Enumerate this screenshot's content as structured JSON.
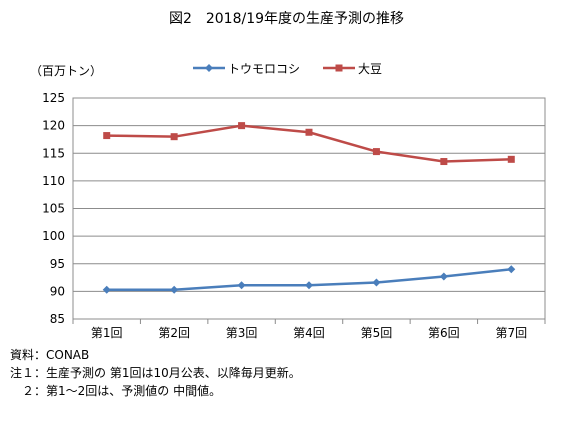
{
  "title": "図2　2018/19年度の生産予測の推移",
  "unit_label": "（百万トン）",
  "chart_data": {
    "type": "line",
    "categories": [
      "第1回",
      "第2回",
      "第3回",
      "第4回",
      "第5回",
      "第6回",
      "第7回"
    ],
    "series": [
      {
        "name": "トウモロコシ",
        "values": [
          90.3,
          90.3,
          91.1,
          91.1,
          91.6,
          92.7,
          94.0
        ],
        "color": "#4a7ebb",
        "marker": "diamond"
      },
      {
        "name": "大豆",
        "values": [
          118.2,
          118.0,
          120.0,
          118.8,
          115.3,
          113.5,
          113.9
        ],
        "color": "#be4b48",
        "marker": "square"
      }
    ],
    "ylim": [
      85,
      125
    ],
    "yticks": [
      85,
      90,
      95,
      100,
      105,
      110,
      115,
      120,
      125
    ],
    "grid": true,
    "legend": "top"
  },
  "notes": [
    "資料：CONAB",
    "注１：生産予測の 第1回は10月公表、以降毎月更新。",
    "　２：第1～2回は、予測値の 中間値。"
  ]
}
